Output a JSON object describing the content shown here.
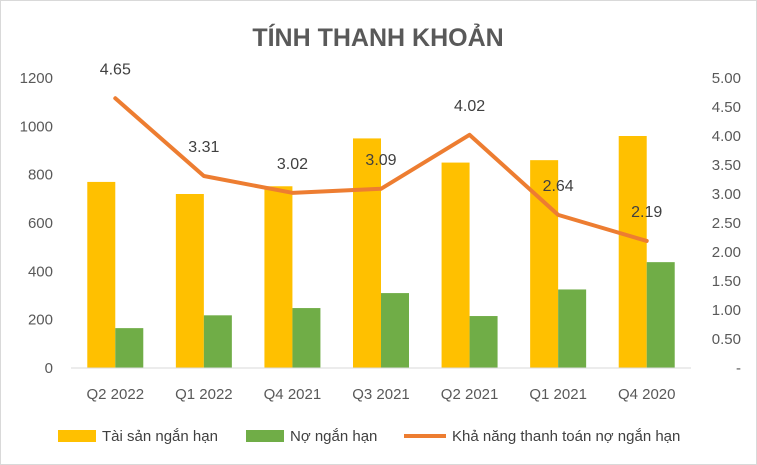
{
  "chart_data": {
    "type": "bar",
    "title": "TÍNH THANH KHOẢN",
    "categories": [
      "Q2 2022",
      "Q1 2022",
      "Q4 2021",
      "Q3 2021",
      "Q2 2021",
      "Q1 2021",
      "Q4 2020"
    ],
    "series": [
      {
        "name": "Tài sản ngắn hạn",
        "type": "bar",
        "axis": "left",
        "color": "#FFC000",
        "values": [
          770,
          720,
          752,
          950,
          850,
          860,
          960
        ]
      },
      {
        "name": "Nợ ngắn hạn",
        "type": "bar",
        "axis": "left",
        "color": "#70AD47",
        "values": [
          165,
          218,
          248,
          310,
          215,
          325,
          438
        ]
      },
      {
        "name": "Khả năng thanh toán nợ ngắn hạn",
        "type": "line",
        "axis": "right",
        "color": "#ED7D31",
        "values": [
          4.65,
          3.31,
          3.02,
          3.09,
          4.02,
          2.64,
          2.19
        ],
        "data_labels": [
          "4.65",
          "3.31",
          "3.02",
          "3.09",
          "4.02",
          "2.64",
          "2.19"
        ]
      }
    ],
    "y_left": {
      "ylim": [
        0,
        1200
      ],
      "ticks": [
        0,
        200,
        400,
        600,
        800,
        1000,
        1200
      ],
      "tick_labels": [
        "0",
        "200",
        "400",
        "600",
        "800",
        "1000",
        "1200"
      ]
    },
    "y_right": {
      "ylim": [
        0,
        5
      ],
      "ticks": [
        0,
        0.5,
        1,
        1.5,
        2,
        2.5,
        3,
        3.5,
        4,
        4.5,
        5
      ],
      "tick_labels": [
        "-",
        "0.50",
        "1.00",
        "1.50",
        "2.00",
        "2.50",
        "3.00",
        "3.50",
        "4.00",
        "4.50",
        "5.00"
      ]
    },
    "grid": false,
    "legend_position": "bottom"
  }
}
